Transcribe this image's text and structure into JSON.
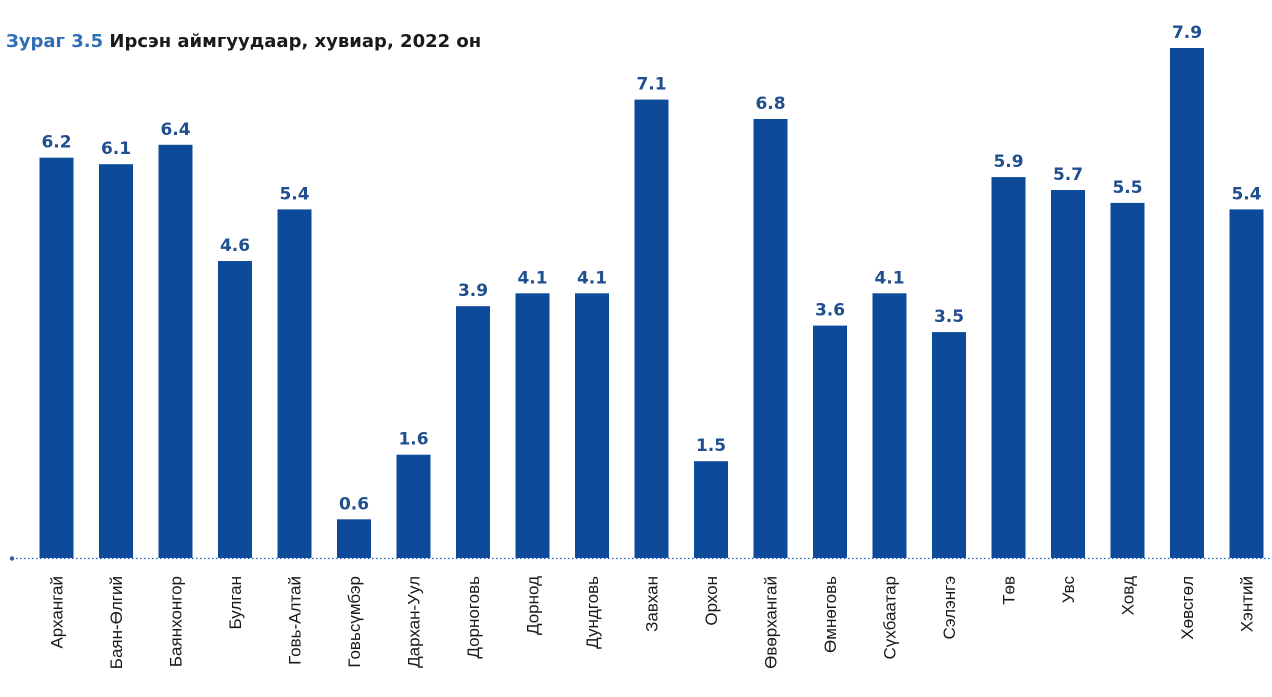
{
  "chart_data": {
    "type": "bar",
    "title_prefix": "Зураг 3.5",
    "title": "Ирсэн аймгуудаар, хувиар, 2022 он",
    "categories": [
      "Архангай",
      "Баян-Өлгий",
      "Баянхонгор",
      "Булган",
      "Говь-Алтай",
      "Говьсүмбэр",
      "Дархан-Уул",
      "Дорноговь",
      "Дорнод",
      "Дундговь",
      "Завхан",
      "Орхон",
      "Өвөрхангай",
      "Өмнөговь",
      "Сүхбаатар",
      "Сэлэнгэ",
      "Төв",
      "Увс",
      "Ховд",
      "Хөвсгөл",
      "Хэнтий"
    ],
    "values": [
      6.2,
      6.1,
      6.4,
      4.6,
      5.4,
      0.6,
      1.6,
      3.9,
      4.1,
      4.1,
      7.1,
      1.5,
      6.8,
      3.6,
      4.1,
      3.5,
      5.9,
      5.7,
      5.5,
      7.9,
      5.4
    ],
    "value_labels": [
      "6.2",
      "6.1",
      "6.4",
      "4.6",
      "5.4",
      "0.6",
      "1.6",
      "3.9",
      "4.1",
      "4.1",
      "7.1",
      "1.5",
      "6.8",
      "3.6",
      "4.1",
      "3.5",
      "5.9",
      "5.7",
      "5.5",
      "7.9",
      "5.4"
    ],
    "ylim": [
      0,
      7.9
    ],
    "xlabel": "",
    "ylabel": "",
    "grid": false,
    "legend": "none",
    "colors": {
      "bar": "#0d4a9a",
      "label": "#1f4f8f",
      "baseline": "#2a5fa8",
      "title_prefix": "#2f6fb5",
      "title": "#1a1a1a",
      "category": "#1a1a1a"
    }
  }
}
